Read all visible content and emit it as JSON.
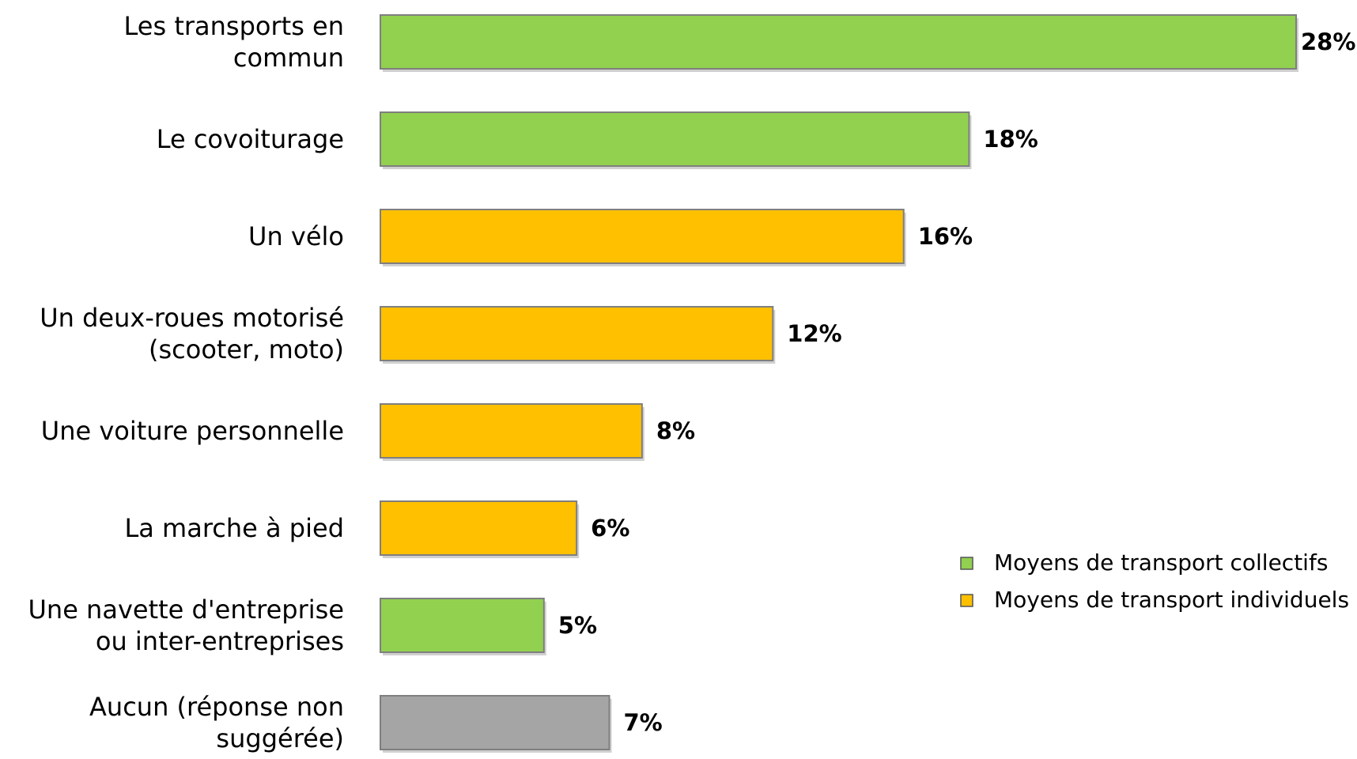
{
  "chart_data": {
    "type": "bar",
    "orientation": "horizontal",
    "categories": [
      "Les transports en commun",
      "Le covoiturage",
      "Un vélo",
      "Un deux-roues motorisé (scooter, moto)",
      "Une voiture personnelle",
      "La marche à pied",
      "Une navette d'entreprise ou inter-entreprises",
      "Aucun (réponse non suggérée)"
    ],
    "values": [
      28,
      18,
      16,
      12,
      8,
      6,
      5,
      7
    ],
    "value_labels": [
      "28%",
      "18%",
      "16%",
      "12%",
      "8%",
      "6%",
      "5%",
      "7%"
    ],
    "colors": [
      "#92d050",
      "#92d050",
      "#ffc000",
      "#ffc000",
      "#ffc000",
      "#ffc000",
      "#92d050",
      "#a5a5a5"
    ],
    "legend": [
      {
        "name": "Moyens de transport collectifs",
        "color": "#92d050"
      },
      {
        "name": "Moyens de transport individuels",
        "color": "#ffc000"
      }
    ],
    "legend_position": "lower right"
  }
}
